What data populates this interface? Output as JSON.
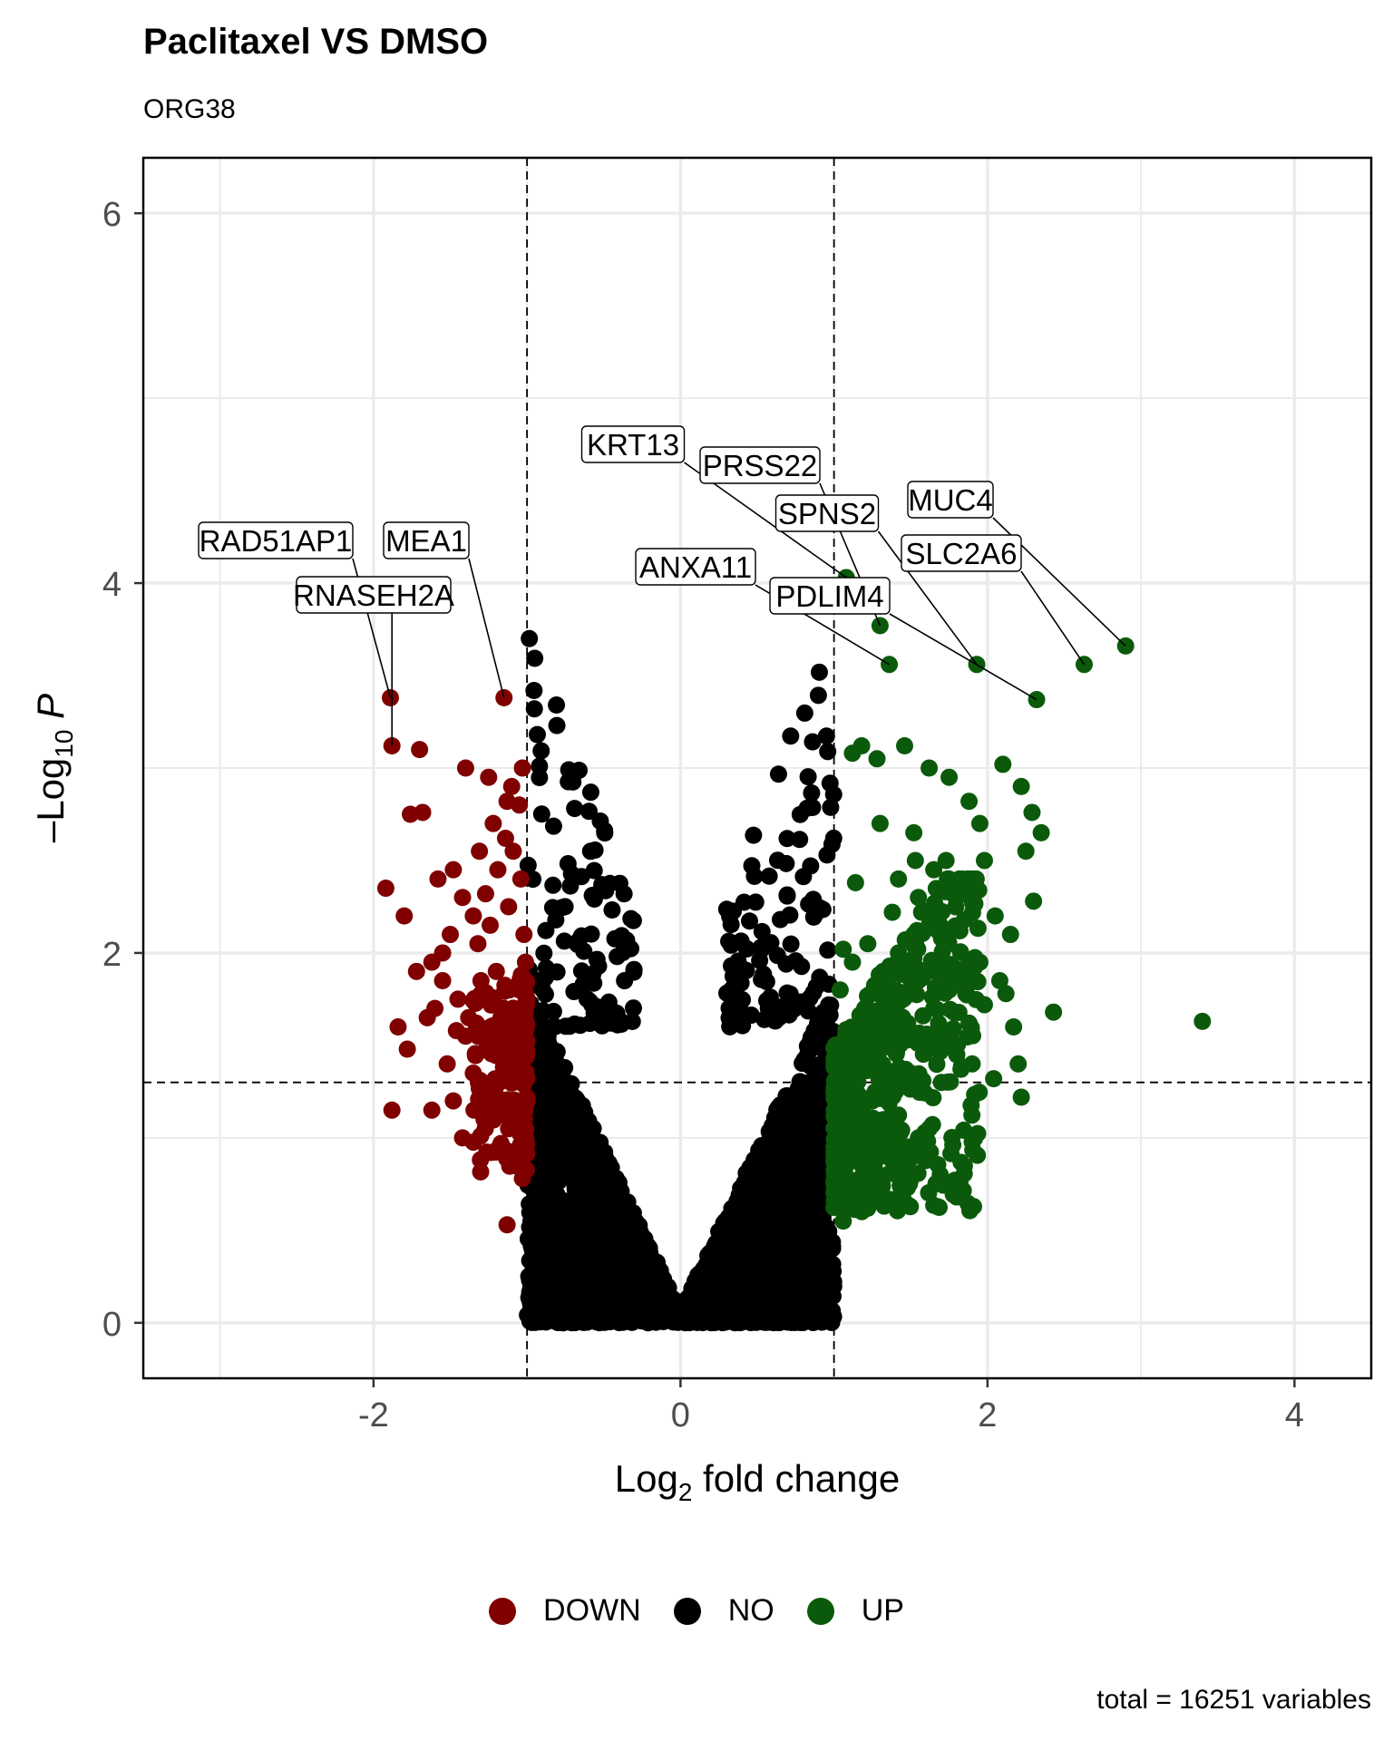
{
  "title": "Paclitaxel VS DMSO",
  "subtitle": "ORG38",
  "caption": "total = 16251 variables",
  "legend": [
    {
      "label": "DOWN",
      "color": "#800000"
    },
    {
      "label": "NO",
      "color": "#000000"
    },
    {
      "label": "UP",
      "color": "#0b5a0b"
    }
  ],
  "chart_data": {
    "type": "scatter",
    "title": "Paclitaxel VS DMSO",
    "subtitle": "ORG38",
    "xlabel_prefix": "Log",
    "xlabel_sub": "2",
    "xlabel_suffix": " fold change",
    "ylabel_prefix": "–Log",
    "ylabel_sub": "10",
    "ylabel_var": "P",
    "xlim": [
      -3.5,
      4.5
    ],
    "ylim": [
      -0.3,
      6.3
    ],
    "x_ticks": [
      -2,
      0,
      2,
      4
    ],
    "y_ticks": [
      0,
      2,
      4,
      6
    ],
    "x_tick_labels": [
      "-2",
      "0",
      "2",
      "4"
    ],
    "y_tick_labels": [
      "0",
      "2",
      "4",
      "6"
    ],
    "grid": true,
    "legend_position": "bottom",
    "thresholds": {
      "fc": [
        -1,
        1
      ],
      "pval_log": 1.3
    },
    "total_variables": 16251,
    "labeled_points": [
      {
        "gene": "KRT13",
        "x": 1.08,
        "y": 4.03,
        "group": "UP"
      },
      {
        "gene": "PRSS22",
        "x": 1.3,
        "y": 3.77,
        "group": "UP"
      },
      {
        "gene": "MUC4",
        "x": 2.9,
        "y": 3.66,
        "group": "UP"
      },
      {
        "gene": "SPNS2",
        "x": 1.93,
        "y": 3.56,
        "group": "UP"
      },
      {
        "gene": "SLC2A6",
        "x": 2.63,
        "y": 3.56,
        "group": "UP"
      },
      {
        "gene": "ANXA11",
        "x": 1.36,
        "y": 3.56,
        "group": "UP"
      },
      {
        "gene": "PDLIM4",
        "x": 2.32,
        "y": 3.37,
        "group": "UP"
      },
      {
        "gene": "RAD51AP1",
        "x": -1.89,
        "y": 3.38,
        "group": "DOWN"
      },
      {
        "gene": "MEA1",
        "x": -1.15,
        "y": 3.38,
        "group": "DOWN"
      },
      {
        "gene": "RNASEH2A",
        "x": -1.88,
        "y": 3.12,
        "group": "DOWN"
      }
    ],
    "series": [
      {
        "name": "DOWN",
        "color": "#800000",
        "points": [
          [
            -1.89,
            3.38
          ],
          [
            -1.88,
            3.12
          ],
          [
            -1.15,
            3.38
          ],
          [
            -1.7,
            3.1
          ],
          [
            -1.4,
            3.0
          ],
          [
            -1.25,
            2.95
          ],
          [
            -1.1,
            2.9
          ],
          [
            -1.03,
            3.0
          ],
          [
            -1.76,
            2.75
          ],
          [
            -1.68,
            2.76
          ],
          [
            -1.13,
            2.82
          ],
          [
            -1.22,
            2.7
          ],
          [
            -1.05,
            2.8
          ],
          [
            -1.31,
            2.55
          ],
          [
            -1.48,
            2.45
          ],
          [
            -1.92,
            2.35
          ],
          [
            -1.8,
            2.2
          ],
          [
            -1.58,
            2.4
          ],
          [
            -1.42,
            2.3
          ],
          [
            -1.27,
            2.32
          ],
          [
            -1.12,
            2.25
          ],
          [
            -1.5,
            2.1
          ],
          [
            -1.35,
            2.2
          ],
          [
            -1.55,
            2.0
          ],
          [
            -1.62,
            1.95
          ],
          [
            -1.72,
            1.9
          ],
          [
            -1.3,
            1.85
          ],
          [
            -1.2,
            1.9
          ],
          [
            -1.05,
            1.8
          ],
          [
            -1.15,
            1.7
          ],
          [
            -1.45,
            1.75
          ],
          [
            -1.6,
            1.7
          ],
          [
            -1.84,
            1.6
          ],
          [
            -1.65,
            1.65
          ],
          [
            -1.4,
            1.55
          ],
          [
            -1.25,
            1.5
          ],
          [
            -1.1,
            1.45
          ],
          [
            -1.52,
            1.4
          ],
          [
            -1.78,
            1.48
          ],
          [
            -1.35,
            1.35
          ],
          [
            -1.18,
            1.3
          ],
          [
            -1.05,
            1.4
          ],
          [
            -1.48,
            1.2
          ],
          [
            -1.62,
            1.15
          ],
          [
            -1.28,
            1.1
          ],
          [
            -1.12,
            1.05
          ],
          [
            -1.88,
            1.15
          ],
          [
            -1.42,
            1.0
          ],
          [
            -1.18,
            0.95
          ],
          [
            -1.08,
            0.85
          ],
          [
            -1.03,
            0.78
          ],
          [
            -1.13,
            0.53
          ],
          [
            -1.21,
            1.25
          ],
          [
            -1.33,
            1.62
          ],
          [
            -1.08,
            1.6
          ],
          [
            -1.55,
            1.85
          ],
          [
            -1.02,
            2.1
          ],
          [
            -1.01,
            1.95
          ],
          [
            -1.04,
            2.4
          ],
          [
            -1.09,
            2.55
          ],
          [
            -1.14,
            2.62
          ],
          [
            -1.19,
            2.45
          ],
          [
            -1.24,
            2.15
          ],
          [
            -1.32,
            2.05
          ],
          [
            -1.07,
            1.2
          ],
          [
            -1.16,
            1.55
          ],
          [
            -1.26,
            1.75
          ],
          [
            -1.02,
            1.3
          ],
          [
            -1.38,
            1.65
          ],
          [
            -1.46,
            1.58
          ],
          [
            -1.01,
            0.92
          ],
          [
            -1.06,
            1.68
          ]
        ]
      },
      {
        "name": "UP",
        "color": "#0b5a0b",
        "points": [
          [
            1.08,
            4.03
          ],
          [
            1.3,
            3.77
          ],
          [
            2.9,
            3.66
          ],
          [
            1.93,
            3.56
          ],
          [
            2.63,
            3.56
          ],
          [
            1.36,
            3.56
          ],
          [
            2.32,
            3.37
          ],
          [
            3.4,
            1.63
          ],
          [
            1.18,
            3.12
          ],
          [
            1.46,
            3.12
          ],
          [
            1.12,
            3.08
          ],
          [
            1.28,
            3.05
          ],
          [
            1.62,
            3.0
          ],
          [
            2.1,
            3.02
          ],
          [
            1.75,
            2.95
          ],
          [
            2.22,
            2.9
          ],
          [
            1.88,
            2.82
          ],
          [
            2.29,
            2.76
          ],
          [
            1.3,
            2.7
          ],
          [
            1.52,
            2.65
          ],
          [
            1.95,
            2.7
          ],
          [
            2.25,
            2.55
          ],
          [
            2.35,
            2.65
          ],
          [
            1.73,
            2.5
          ],
          [
            1.53,
            2.5
          ],
          [
            1.65,
            2.45
          ],
          [
            1.98,
            2.5
          ],
          [
            1.42,
            2.4
          ],
          [
            1.78,
            2.35
          ],
          [
            1.14,
            2.38
          ],
          [
            2.3,
            2.28
          ],
          [
            1.55,
            2.3
          ],
          [
            1.38,
            2.22
          ],
          [
            1.85,
            2.18
          ],
          [
            2.15,
            2.1
          ],
          [
            2.05,
            2.2
          ],
          [
            2.43,
            1.68
          ],
          [
            2.17,
            1.6
          ],
          [
            2.2,
            1.4
          ],
          [
            1.9,
            1.4
          ],
          [
            2.22,
            1.22
          ],
          [
            2.04,
            1.32
          ],
          [
            1.62,
            1.05
          ],
          [
            1.55,
            1.0
          ],
          [
            1.27,
            0.9
          ],
          [
            1.06,
            0.55
          ],
          [
            1.1,
            0.75
          ],
          [
            1.2,
            0.82
          ],
          [
            1.35,
            0.95
          ],
          [
            1.15,
            1.1
          ],
          [
            1.25,
            1.2
          ],
          [
            1.4,
            1.25
          ],
          [
            1.5,
            1.35
          ],
          [
            1.7,
            1.3
          ],
          [
            1.8,
            1.45
          ],
          [
            1.6,
            1.5
          ],
          [
            1.1,
            1.55
          ],
          [
            1.2,
            1.7
          ],
          [
            1.3,
            1.6
          ],
          [
            1.45,
            1.75
          ],
          [
            1.55,
            1.85
          ],
          [
            1.65,
            1.7
          ],
          [
            1.75,
            1.8
          ],
          [
            1.85,
            1.9
          ],
          [
            1.95,
            1.95
          ],
          [
            2.08,
            1.85
          ],
          [
            1.12,
            1.95
          ],
          [
            1.22,
            2.05
          ],
          [
            1.32,
            1.9
          ],
          [
            1.42,
            2.0
          ],
          [
            1.52,
            2.1
          ],
          [
            1.62,
            2.15
          ],
          [
            1.72,
            2.05
          ],
          [
            1.82,
            2.12
          ],
          [
            1.02,
            1.5
          ],
          [
            1.04,
            1.8
          ],
          [
            1.06,
            2.02
          ],
          [
            1.08,
            1.35
          ],
          [
            1.18,
            1.45
          ],
          [
            1.28,
            1.42
          ],
          [
            1.38,
            1.55
          ],
          [
            1.48,
            1.62
          ],
          [
            1.58,
            1.66
          ],
          [
            1.68,
            1.58
          ],
          [
            1.78,
            1.68
          ],
          [
            1.88,
            1.62
          ],
          [
            1.98,
            1.72
          ],
          [
            2.12,
            1.78
          ]
        ]
      }
    ]
  }
}
